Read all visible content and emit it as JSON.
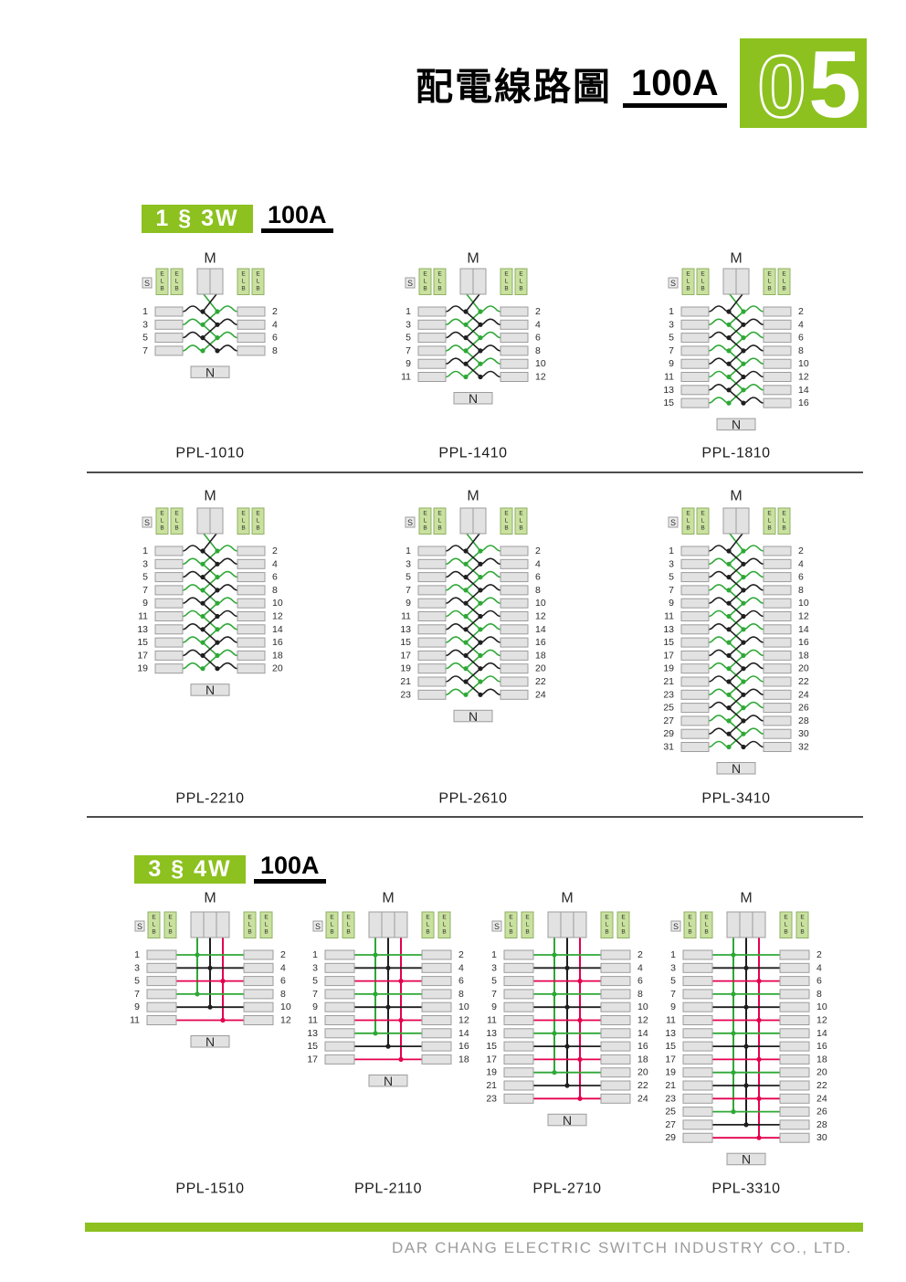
{
  "header": {
    "title": "配電線路圖",
    "amperage": "100A",
    "page_number_digits": [
      "0",
      "5"
    ]
  },
  "sections": [
    {
      "phase_label": "1 § 3W",
      "amperage": "100A",
      "type": "1p3w"
    },
    {
      "phase_label": "3 § 4W",
      "amperage": "100A",
      "type": "3p4w"
    }
  ],
  "diagram_labels": {
    "main": "M",
    "neutral": "N",
    "switch": "S",
    "breaker_letters": [
      "E",
      "L",
      "B"
    ]
  },
  "diagrams": [
    {
      "model": "PPL-1010",
      "phase": "1p3w",
      "circuits": 8
    },
    {
      "model": "PPL-1410",
      "phase": "1p3w",
      "circuits": 12
    },
    {
      "model": "PPL-1810",
      "phase": "1p3w",
      "circuits": 16
    },
    {
      "model": "PPL-2210",
      "phase": "1p3w",
      "circuits": 20
    },
    {
      "model": "PPL-2610",
      "phase": "1p3w",
      "circuits": 24
    },
    {
      "model": "PPL-3410",
      "phase": "1p3w",
      "circuits": 32
    },
    {
      "model": "PPL-1510",
      "phase": "3p4w",
      "circuits": 12
    },
    {
      "model": "PPL-2110",
      "phase": "3p4w",
      "circuits": 18
    },
    {
      "model": "PPL-2710",
      "phase": "3p4w",
      "circuits": 24
    },
    {
      "model": "PPL-3310",
      "phase": "3p4w",
      "circuits": 30
    }
  ],
  "wire_color_cycle_1p3w": [
    "black",
    "green"
  ],
  "wire_color_cycle_3p4w": [
    "green",
    "black",
    "red"
  ],
  "footer": {
    "company": "DAR CHANG ELECTRIC SWITCH INDUSTRY CO., LTD."
  },
  "colors": {
    "brand_green": "#8cc11f",
    "wire_green": "#2ea836",
    "wire_black": "#1f1f1f",
    "wire_red": "#e4004e",
    "elb_fill": "#c9e19e",
    "elb_border": "#90af66",
    "box_fill": "#e2e2e2",
    "box_border": "#9c9c9c",
    "divider": "#4d4d4d",
    "footer_text": "#9c9c9c"
  }
}
